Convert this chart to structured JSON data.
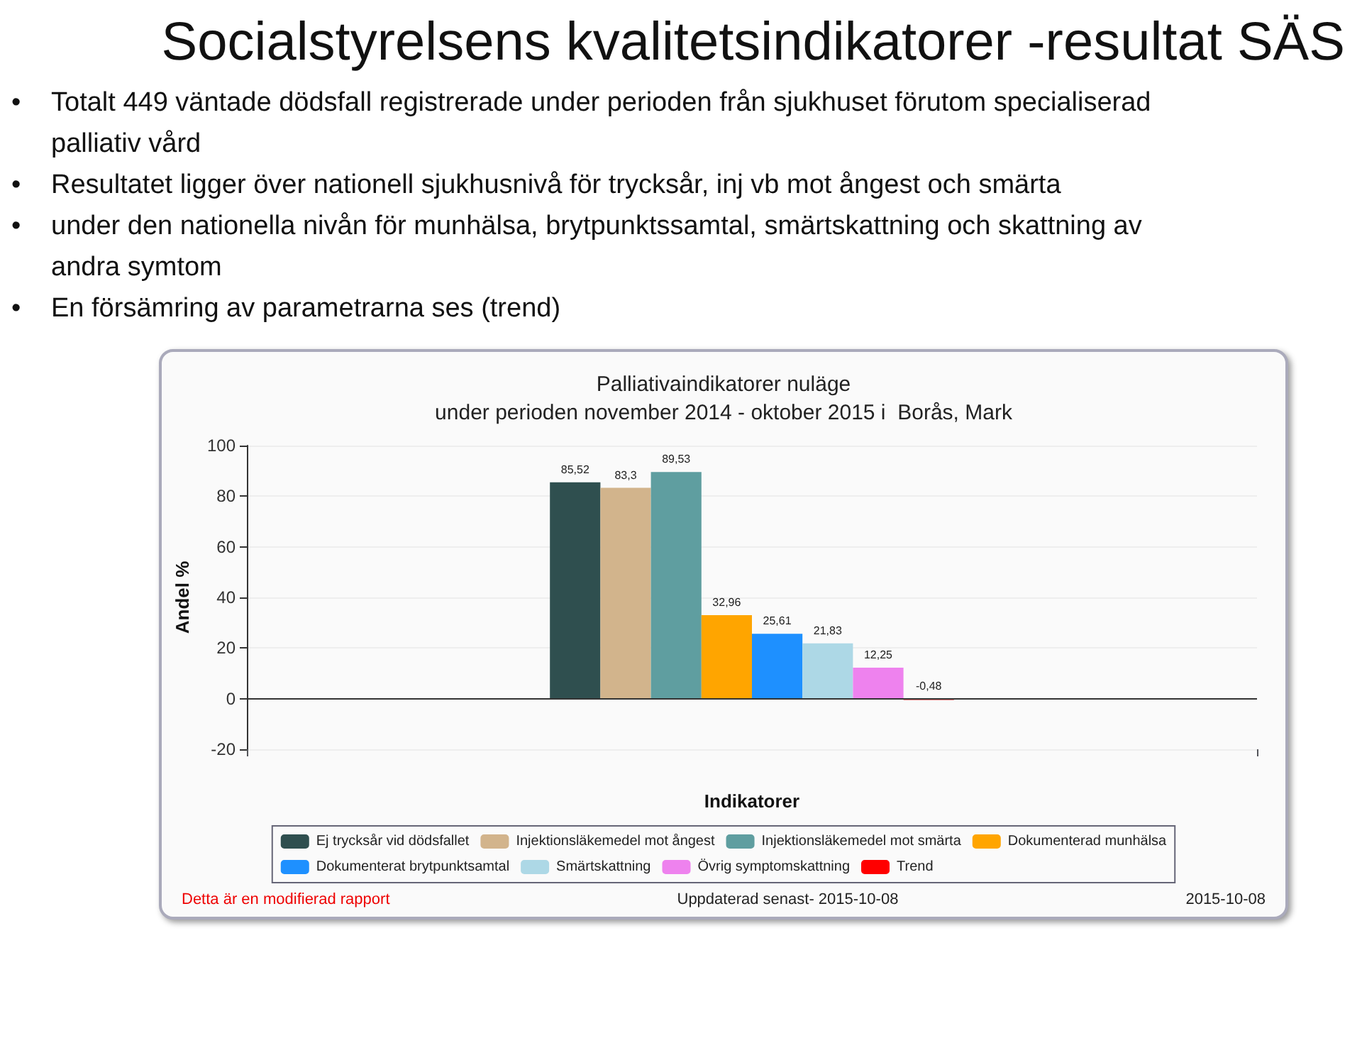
{
  "chart_data": {
    "type": "bar",
    "title": "Socialstyrelsens kvalitetsindikatorer -resultat SÄS",
    "subtitle": "Palliativaindikatorer nuläge\nunder perioden november 2014 - oktober 2015 i  Borås, Mark",
    "xlabel": "Indikatorer",
    "ylabel": "Andel %",
    "categories": [
      null
    ],
    "series": [
      {
        "name": "Ej trycksår vid dödsfallet",
        "color": "#2f4f4f",
        "values": [
          85.52
        ],
        "value_labels": [
          "85,52"
        ]
      },
      {
        "name": "Injektionsläkemedel mot ångest",
        "color": "#d2b48c",
        "values": [
          83.3
        ],
        "value_labels": [
          "83,3"
        ]
      },
      {
        "name": "Injektionsläkemedel mot smärta",
        "color": "#5f9ea0",
        "values": [
          89.53
        ],
        "value_labels": [
          "89,53"
        ]
      },
      {
        "name": "Dokumenterad munhälsa",
        "color": "#ffa500",
        "values": [
          32.96
        ],
        "value_labels": [
          "32,96"
        ]
      },
      {
        "name": "Dokumenterat brytpunktsamtal",
        "color": "#1e90ff",
        "values": [
          25.61
        ],
        "value_labels": [
          "25,61"
        ]
      },
      {
        "name": "Smärtskattning",
        "color": "#add8e6",
        "values": [
          21.83
        ],
        "value_labels": [
          "21,83"
        ]
      },
      {
        "name": "Övrig symptomskattning",
        "color": "#ee82ee",
        "values": [
          12.25
        ],
        "value_labels": [
          "12,25"
        ]
      },
      {
        "name": "Trend",
        "color": "#ff0000",
        "values": [
          -0.48
        ],
        "value_labels": [
          "-0,48"
        ]
      }
    ],
    "ylim": [
      -20,
      100
    ],
    "yticks": [
      -20,
      0,
      20,
      40,
      60,
      80,
      100
    ],
    "grid": "y",
    "legend": "bottom",
    "annotations": [
      "•\tTotalt 449 väntade dödsfall registrerade under perioden från sjukhuset förutom specialiserad palliativ vård",
      "•\tResultatet ligger över nationell sjukhusnivå för trycksår, inj vb mot ångest och smärta",
      "•\tunder den nationella nivån för munhälsa, brytpunktssamtal, smärtskattning och skattning av andra symtom",
      "•\tEn försämring av parametrarna ses (trend)",
      "Detta är en modifierad rapport",
      "Uppdaterad senast- 2015-10-08",
      "2015-10-08"
    ]
  }
}
